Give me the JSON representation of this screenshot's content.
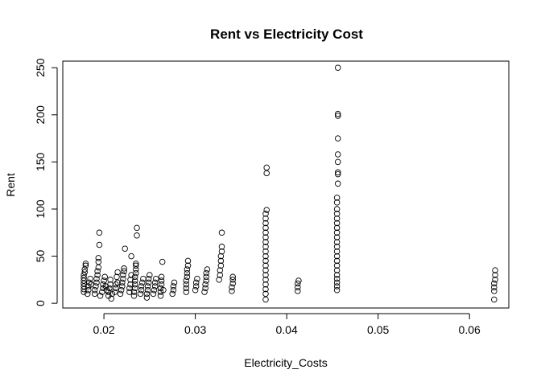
{
  "chart_data": {
    "type": "scatter",
    "title": "Rent vs Electricity Cost",
    "xlabel": "Electricity_Costs",
    "ylabel": "Rent",
    "xlim": [
      0.0155,
      0.0643
    ],
    "ylim": [
      -5,
      257
    ],
    "xticks": [
      0.02,
      0.03,
      0.04,
      0.05,
      0.06
    ],
    "xtick_labels": [
      "0.02",
      "0.03",
      "0.04",
      "0.05",
      "0.06"
    ],
    "yticks": [
      0,
      50,
      100,
      150,
      200,
      250
    ],
    "ytick_labels": [
      "0",
      "50",
      "100",
      "150",
      "200",
      "250"
    ],
    "grid": false,
    "marker": "open-circle",
    "points": [
      [
        0.0178,
        12
      ],
      [
        0.0178,
        15
      ],
      [
        0.0178,
        18
      ],
      [
        0.0178,
        21
      ],
      [
        0.0178,
        24
      ],
      [
        0.0178,
        27
      ],
      [
        0.0178,
        30
      ],
      [
        0.0179,
        33
      ],
      [
        0.0179,
        36
      ],
      [
        0.018,
        40
      ],
      [
        0.018,
        42
      ],
      [
        0.0182,
        10
      ],
      [
        0.0183,
        14
      ],
      [
        0.0183,
        18
      ],
      [
        0.0184,
        22
      ],
      [
        0.0185,
        26
      ],
      [
        0.0186,
        20
      ],
      [
        0.019,
        10
      ],
      [
        0.019,
        14
      ],
      [
        0.0191,
        18
      ],
      [
        0.0192,
        22
      ],
      [
        0.0192,
        26
      ],
      [
        0.0193,
        30
      ],
      [
        0.0193,
        34
      ],
      [
        0.0194,
        38
      ],
      [
        0.0194,
        44
      ],
      [
        0.0194,
        48
      ],
      [
        0.0195,
        62
      ],
      [
        0.0195,
        75
      ],
      [
        0.0196,
        8
      ],
      [
        0.0198,
        12
      ],
      [
        0.0199,
        16
      ],
      [
        0.0199,
        20
      ],
      [
        0.02,
        24
      ],
      [
        0.0201,
        28
      ],
      [
        0.0202,
        18
      ],
      [
        0.0203,
        14
      ],
      [
        0.0205,
        8
      ],
      [
        0.0205,
        12
      ],
      [
        0.0206,
        16
      ],
      [
        0.0207,
        20
      ],
      [
        0.0207,
        25
      ],
      [
        0.0208,
        5
      ],
      [
        0.0209,
        10
      ],
      [
        0.0212,
        12
      ],
      [
        0.0213,
        16
      ],
      [
        0.0213,
        20
      ],
      [
        0.0214,
        28
      ],
      [
        0.0215,
        33
      ],
      [
        0.0215,
        22
      ],
      [
        0.0218,
        10
      ],
      [
        0.0219,
        14
      ],
      [
        0.022,
        18
      ],
      [
        0.022,
        22
      ],
      [
        0.0221,
        26
      ],
      [
        0.0221,
        30
      ],
      [
        0.0222,
        34
      ],
      [
        0.0222,
        37
      ],
      [
        0.0223,
        58
      ],
      [
        0.0228,
        12
      ],
      [
        0.0228,
        16
      ],
      [
        0.0229,
        20
      ],
      [
        0.0229,
        25
      ],
      [
        0.023,
        30
      ],
      [
        0.023,
        50
      ],
      [
        0.0233,
        8
      ],
      [
        0.0233,
        12
      ],
      [
        0.0234,
        16
      ],
      [
        0.0234,
        20
      ],
      [
        0.0234,
        24
      ],
      [
        0.0234,
        28
      ],
      [
        0.0235,
        32
      ],
      [
        0.0235,
        36
      ],
      [
        0.0235,
        40
      ],
      [
        0.0235,
        42
      ],
      [
        0.0236,
        72
      ],
      [
        0.0236,
        80
      ],
      [
        0.024,
        10
      ],
      [
        0.0241,
        14
      ],
      [
        0.0241,
        18
      ],
      [
        0.0242,
        22
      ],
      [
        0.0243,
        26
      ],
      [
        0.0247,
        6
      ],
      [
        0.0247,
        10
      ],
      [
        0.0248,
        14
      ],
      [
        0.0248,
        18
      ],
      [
        0.0249,
        22
      ],
      [
        0.0249,
        26
      ],
      [
        0.025,
        30
      ],
      [
        0.0254,
        10
      ],
      [
        0.0255,
        14
      ],
      [
        0.0256,
        18
      ],
      [
        0.0256,
        22
      ],
      [
        0.0257,
        26
      ],
      [
        0.0262,
        8
      ],
      [
        0.0262,
        12
      ],
      [
        0.0262,
        16
      ],
      [
        0.0263,
        20
      ],
      [
        0.0263,
        24
      ],
      [
        0.0263,
        28
      ],
      [
        0.0264,
        44
      ],
      [
        0.0265,
        14
      ],
      [
        0.0275,
        10
      ],
      [
        0.0276,
        14
      ],
      [
        0.0276,
        18
      ],
      [
        0.0277,
        22
      ],
      [
        0.029,
        12
      ],
      [
        0.029,
        16
      ],
      [
        0.029,
        20
      ],
      [
        0.029,
        24
      ],
      [
        0.0291,
        28
      ],
      [
        0.0291,
        32
      ],
      [
        0.0291,
        36
      ],
      [
        0.0292,
        40
      ],
      [
        0.0292,
        45
      ],
      [
        0.03,
        14
      ],
      [
        0.0301,
        18
      ],
      [
        0.0301,
        22
      ],
      [
        0.0302,
        26
      ],
      [
        0.031,
        12
      ],
      [
        0.0311,
        16
      ],
      [
        0.0311,
        20
      ],
      [
        0.0312,
        24
      ],
      [
        0.0312,
        28
      ],
      [
        0.0312,
        32
      ],
      [
        0.0313,
        36
      ],
      [
        0.0326,
        25
      ],
      [
        0.0327,
        30
      ],
      [
        0.0327,
        35
      ],
      [
        0.0328,
        40
      ],
      [
        0.0328,
        45
      ],
      [
        0.0328,
        50
      ],
      [
        0.0329,
        55
      ],
      [
        0.0329,
        60
      ],
      [
        0.0329,
        75
      ],
      [
        0.034,
        13
      ],
      [
        0.034,
        17
      ],
      [
        0.0341,
        21
      ],
      [
        0.0341,
        25
      ],
      [
        0.0341,
        28
      ],
      [
        0.0377,
        4
      ],
      [
        0.0377,
        10
      ],
      [
        0.0377,
        15
      ],
      [
        0.0377,
        20
      ],
      [
        0.0377,
        25
      ],
      [
        0.0377,
        30
      ],
      [
        0.0377,
        35
      ],
      [
        0.0377,
        40
      ],
      [
        0.0377,
        45
      ],
      [
        0.0377,
        50
      ],
      [
        0.0377,
        55
      ],
      [
        0.0377,
        60
      ],
      [
        0.0377,
        65
      ],
      [
        0.0377,
        70
      ],
      [
        0.0377,
        75
      ],
      [
        0.0377,
        80
      ],
      [
        0.0377,
        85
      ],
      [
        0.0377,
        90
      ],
      [
        0.0377,
        95
      ],
      [
        0.0378,
        99
      ],
      [
        0.0378,
        138
      ],
      [
        0.0378,
        144
      ],
      [
        0.0412,
        13
      ],
      [
        0.0412,
        17
      ],
      [
        0.0412,
        21
      ],
      [
        0.0413,
        24
      ],
      [
        0.0455,
        14
      ],
      [
        0.0455,
        18
      ],
      [
        0.0455,
        22
      ],
      [
        0.0455,
        26
      ],
      [
        0.0455,
        30
      ],
      [
        0.0455,
        35
      ],
      [
        0.0455,
        40
      ],
      [
        0.0455,
        45
      ],
      [
        0.0455,
        50
      ],
      [
        0.0455,
        55
      ],
      [
        0.0455,
        60
      ],
      [
        0.0455,
        65
      ],
      [
        0.0455,
        70
      ],
      [
        0.0455,
        75
      ],
      [
        0.0455,
        80
      ],
      [
        0.0455,
        85
      ],
      [
        0.0455,
        90
      ],
      [
        0.0455,
        95
      ],
      [
        0.0455,
        100
      ],
      [
        0.0455,
        107
      ],
      [
        0.0455,
        112
      ],
      [
        0.0456,
        127
      ],
      [
        0.0456,
        137
      ],
      [
        0.0456,
        139
      ],
      [
        0.0456,
        150
      ],
      [
        0.0456,
        158
      ],
      [
        0.0456,
        175
      ],
      [
        0.0456,
        199
      ],
      [
        0.0456,
        201
      ],
      [
        0.0456,
        250
      ],
      [
        0.0627,
        4
      ],
      [
        0.0627,
        13
      ],
      [
        0.0627,
        17
      ],
      [
        0.0627,
        21
      ],
      [
        0.0628,
        25
      ],
      [
        0.0628,
        30
      ],
      [
        0.0628,
        35
      ]
    ]
  }
}
